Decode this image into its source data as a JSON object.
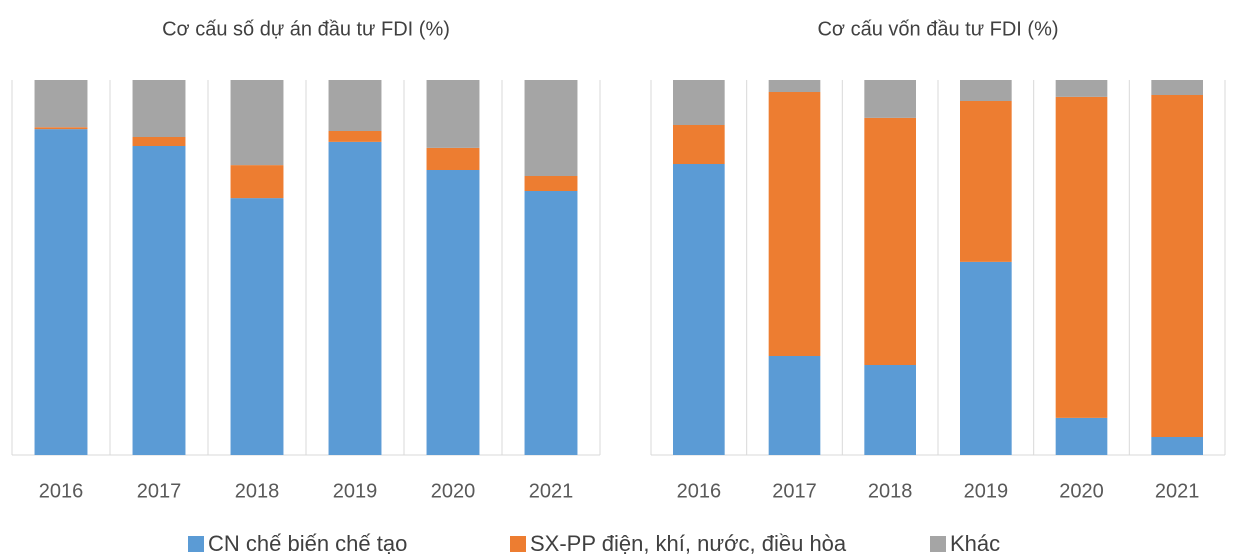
{
  "chart_data": [
    {
      "type": "stacked_bar",
      "title": "Cơ cấu số dự án đầu tư FDI (%)",
      "categories": [
        "2016",
        "2017",
        "2018",
        "2019",
        "2020",
        "2021"
      ],
      "ylim": [
        0,
        100
      ],
      "grid": true,
      "series": [
        {
          "name": "CN chế biến chế tạo",
          "color": "#5b9bd5",
          "values": [
            86.9,
            82.4,
            68.5,
            83.5,
            76,
            70.4
          ]
        },
        {
          "name": "SX-PP điện, khí, nước, điều hòa",
          "color": "#ed7d31",
          "values": [
            0.5,
            2.4,
            8.8,
            2.9,
            5.9,
            4
          ]
        },
        {
          "name": "Khác",
          "color": "#a5a5a5",
          "values": [
            12.6,
            15.2,
            22.7,
            13.6,
            18.1,
            25.6
          ]
        }
      ]
    },
    {
      "type": "stacked_bar",
      "title": "Cơ cấu vốn đầu tư FDI (%)",
      "categories": [
        "2016",
        "2017",
        "2018",
        "2019",
        "2020",
        "2021"
      ],
      "ylim": [
        0,
        100
      ],
      "grid": true,
      "series": [
        {
          "color": "#5b9bd5",
          "values": [
            77.6,
            26.4,
            24,
            51.5,
            9.9,
            4.8
          ]
        },
        {
          "color": "#ed7d31",
          "values": [
            10.4,
            70.4,
            65.9,
            42.9,
            85.6,
            91.2
          ]
        },
        {
          "color": "#a5a5a5",
          "values": [
            12,
            3.2,
            10.1,
            5.6,
            4.5,
            4
          ]
        }
      ]
    }
  ]
}
